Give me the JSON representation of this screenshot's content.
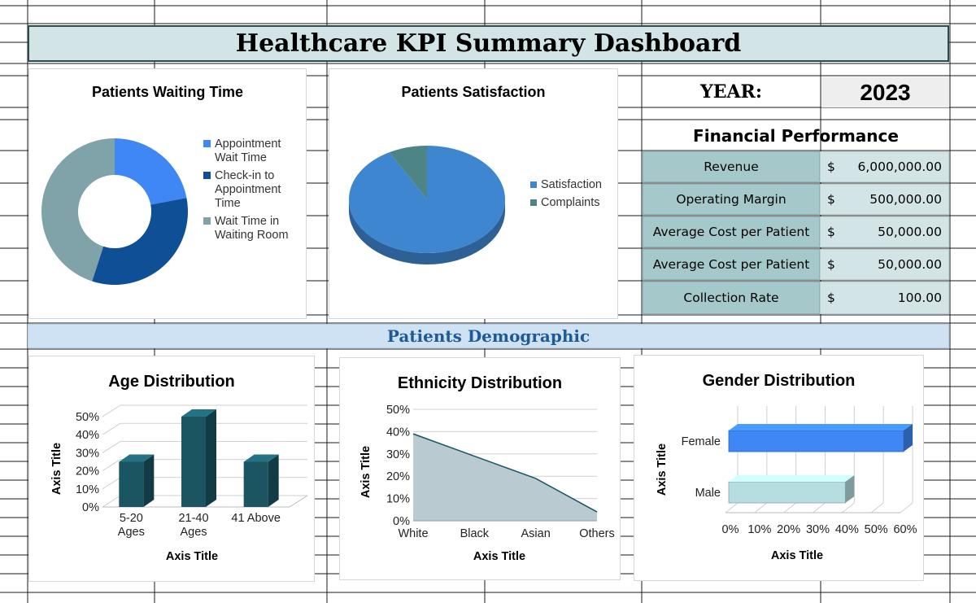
{
  "dashboard_title": "Healthcare KPI Summary Dashboard",
  "year": {
    "label": "YEAR:",
    "value": "2023"
  },
  "financial": {
    "title": "Financial Performance",
    "rows": [
      {
        "label": "Revenue",
        "currency": "$",
        "value": "6,000,000.00"
      },
      {
        "label": "Operating Margin",
        "currency": "$",
        "value": "500,000.00"
      },
      {
        "label": "Average Cost per Patient",
        "currency": "$",
        "value": "50,000.00"
      },
      {
        "label": "Average Cost per Patient",
        "currency": "$",
        "value": "50,000.00"
      },
      {
        "label": "Collection Rate",
        "currency": "$",
        "value": "100.00"
      }
    ]
  },
  "demographic_title": "Patients Demographic",
  "colors": {
    "title_bg": "#d2e4e6",
    "dark_teal": "#1b5562",
    "blue": "#3f87f5",
    "navy": "#0e4f96",
    "grey_teal": "#7fa3a8",
    "sat_blue": "#3e86cf",
    "complaint": "#4d8587",
    "light_teal": "#b6dde0"
  },
  "chart_data": [
    {
      "type": "pie",
      "variant": "donut",
      "title": "Patients Waiting Time",
      "labels": [
        "Appointment Wait Time",
        "Check-in to Appointment Time",
        "Wait Time in Waiting Room"
      ],
      "legend_lines": [
        [
          "Appointment",
          "Wait Time"
        ],
        [
          "Check-in to",
          "Appointment",
          "Time"
        ],
        [
          "Wait Time in",
          "Waiting Room"
        ]
      ],
      "values": [
        22,
        33,
        45
      ],
      "colors": [
        "#3f87f5",
        "#0e4f96",
        "#7fa3a8"
      ],
      "legend": "right"
    },
    {
      "type": "pie",
      "variant": "3d",
      "title": "Patients Satisfaction",
      "labels": [
        "Satisfaction",
        "Complaints"
      ],
      "values": [
        92,
        8
      ],
      "colors": [
        "#3e86cf",
        "#4d8587"
      ],
      "legend": "right"
    },
    {
      "type": "bar",
      "variant": "3d",
      "title": "Age Distribution",
      "categories": [
        "5-20 Ages",
        "21-40 Ages",
        "41 Above"
      ],
      "category_lines": [
        [
          "5-20",
          "Ages"
        ],
        [
          "21-40",
          "Ages"
        ],
        [
          "41 Above"
        ]
      ],
      "values": [
        25,
        50,
        25
      ],
      "xlabel": "Axis Title",
      "ylabel": "Axis Title",
      "ylim": [
        0,
        50
      ],
      "yticks": [
        "0%",
        "10%",
        "20%",
        "30%",
        "40%",
        "50%"
      ],
      "color": "#1b5562",
      "grid": true
    },
    {
      "type": "area",
      "title": "Ethnicity Distribution",
      "categories": [
        "White",
        "Black",
        "Asian",
        "Others"
      ],
      "values": [
        39,
        29,
        19,
        4
      ],
      "xlabel": "Axis Title",
      "ylabel": "Axis Title",
      "ylim": [
        0,
        50
      ],
      "yticks": [
        "0%",
        "10%",
        "20%",
        "30%",
        "40%",
        "50%"
      ],
      "color": "#b9cbd1",
      "line_color": "#1b5562",
      "grid": true
    },
    {
      "type": "bar",
      "variant": "3d-horizontal",
      "title": "Gender Distribution",
      "categories": [
        "Female",
        "Male"
      ],
      "values": [
        60,
        40
      ],
      "colors": [
        "#3f87f5",
        "#b6dde0"
      ],
      "xlabel": "Axis Title",
      "ylabel": "Axis Title",
      "xlim": [
        0,
        60
      ],
      "xticks": [
        "0%",
        "10%",
        "20%",
        "30%",
        "40%",
        "50%",
        "60%"
      ],
      "grid": true
    }
  ]
}
